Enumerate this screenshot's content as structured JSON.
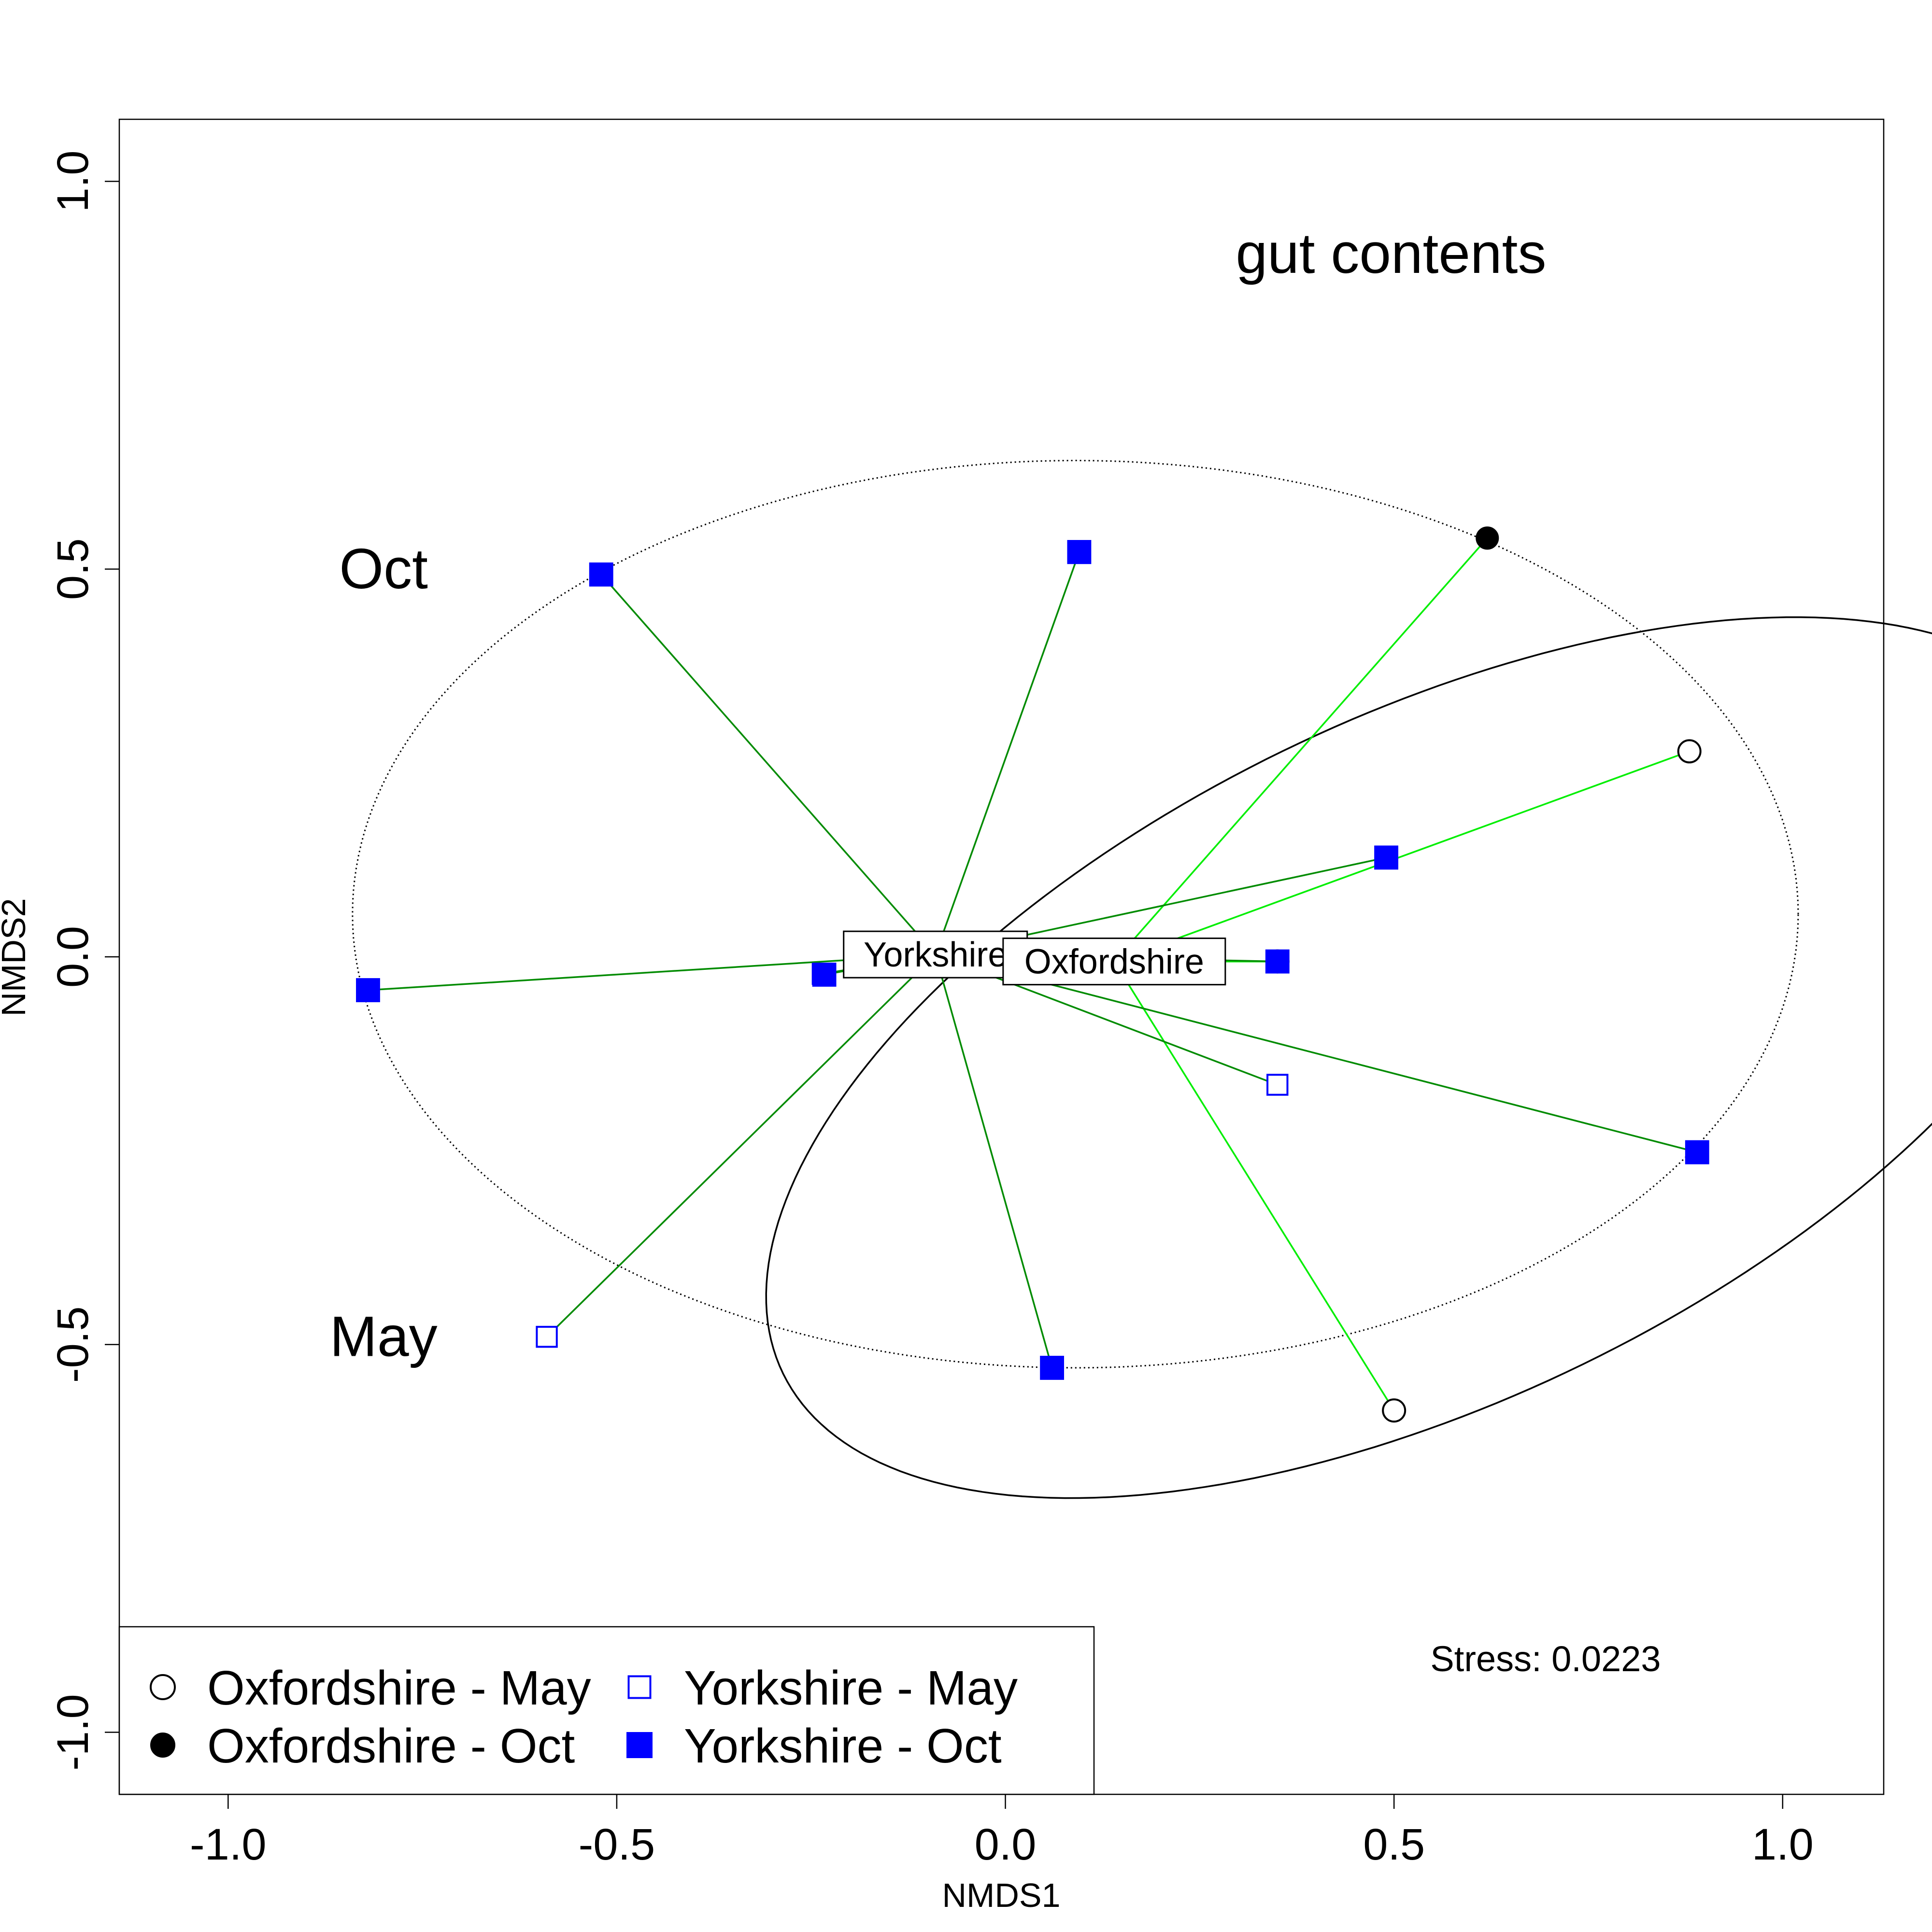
{
  "chart_data": {
    "type": "scatter",
    "title": "gut contents",
    "xlabel": "NMDS1",
    "ylabel": "NMDS2",
    "xlim": [
      -1.14,
      1.13
    ],
    "ylim": [
      -1.08,
      1.08
    ],
    "x_ticks": [
      {
        "value": -1.0,
        "label": "-1.0"
      },
      {
        "value": -0.5,
        "label": "-0.5"
      },
      {
        "value": 0.0,
        "label": "0.0"
      },
      {
        "value": 0.5,
        "label": "0.5"
      },
      {
        "value": 1.0,
        "label": "1.0"
      }
    ],
    "y_ticks": [
      {
        "value": -1.0,
        "label": "-1.0"
      },
      {
        "value": -0.5,
        "label": "-0.5"
      },
      {
        "value": 0.0,
        "label": "0.0"
      },
      {
        "value": 0.5,
        "label": "0.5"
      },
      {
        "value": 1.0,
        "label": "1.0"
      }
    ],
    "stress_text": "Stress: 0.0223",
    "annotations": {
      "oct_label": "Oct",
      "may_label": "May",
      "oct_pos": [
        -0.8,
        0.5
      ],
      "may_pos": [
        -0.8,
        -0.49
      ]
    },
    "centroids": [
      {
        "label": "Yorkshire",
        "x": -0.09,
        "y": 0.003
      },
      {
        "label": "Oxfordshire",
        "x": 0.14,
        "y": -0.006
      }
    ],
    "ellipses": [
      {
        "name": "Oct",
        "style": "dotted",
        "center": [
          0.09,
          0.055
        ],
        "rx": 0.93,
        "ry": 0.585,
        "angle": 0
      },
      {
        "name": "May",
        "style": "solid",
        "center": [
          0.55,
          -0.13
        ],
        "rx": 0.93,
        "ry": 0.44,
        "angle": 26
      }
    ],
    "legend": {
      "position": "bottom-left",
      "items": [
        {
          "label": "Oxfordshire - May",
          "marker": "circle-open",
          "color": "#000000"
        },
        {
          "label": "Oxfordshire - Oct",
          "marker": "circle-filled",
          "color": "#000000"
        },
        {
          "label": "Yorkshire - May",
          "marker": "square-open",
          "color": "#0000ff"
        },
        {
          "label": "Yorkshire - Oct",
          "marker": "square-filled",
          "color": "#0000ff"
        }
      ]
    },
    "colors": {
      "oxfordshire_spider": "#00ee00",
      "yorkshire_spider": "#008b00",
      "yorkshire": "#0000ff",
      "oxfordshire": "#000000"
    },
    "series": [
      {
        "name": "Oxfordshire - May",
        "marker": "circle-open",
        "color": "#000000",
        "centroid": 1,
        "points": [
          {
            "x": 0.88,
            "y": 0.265
          },
          {
            "x": 0.5,
            "y": -0.585
          },
          {
            "x": 0.35,
            "y": -0.006
          }
        ]
      },
      {
        "name": "Oxfordshire - Oct",
        "marker": "circle-filled",
        "color": "#000000",
        "centroid": 1,
        "points": [
          {
            "x": 0.62,
            "y": 0.54
          },
          {
            "x": 0.35,
            "y": -0.006
          }
        ]
      },
      {
        "name": "Yorkshire - May",
        "marker": "square-open",
        "color": "#0000ff",
        "centroid": 0,
        "points": [
          {
            "x": -0.59,
            "y": -0.49
          },
          {
            "x": 0.35,
            "y": -0.165
          },
          {
            "x": -0.235,
            "y": -0.022
          }
        ]
      },
      {
        "name": "Yorkshire - Oct",
        "marker": "square-filled",
        "color": "#0000ff",
        "centroid": 0,
        "points": [
          {
            "x": -0.52,
            "y": 0.493
          },
          {
            "x": 0.095,
            "y": 0.522
          },
          {
            "x": -0.82,
            "y": -0.043
          },
          {
            "x": -0.233,
            "y": -0.023
          },
          {
            "x": 0.49,
            "y": 0.128
          },
          {
            "x": 0.89,
            "y": -0.252
          },
          {
            "x": 0.06,
            "y": -0.53
          },
          {
            "x": 0.35,
            "y": -0.006
          }
        ]
      }
    ]
  }
}
